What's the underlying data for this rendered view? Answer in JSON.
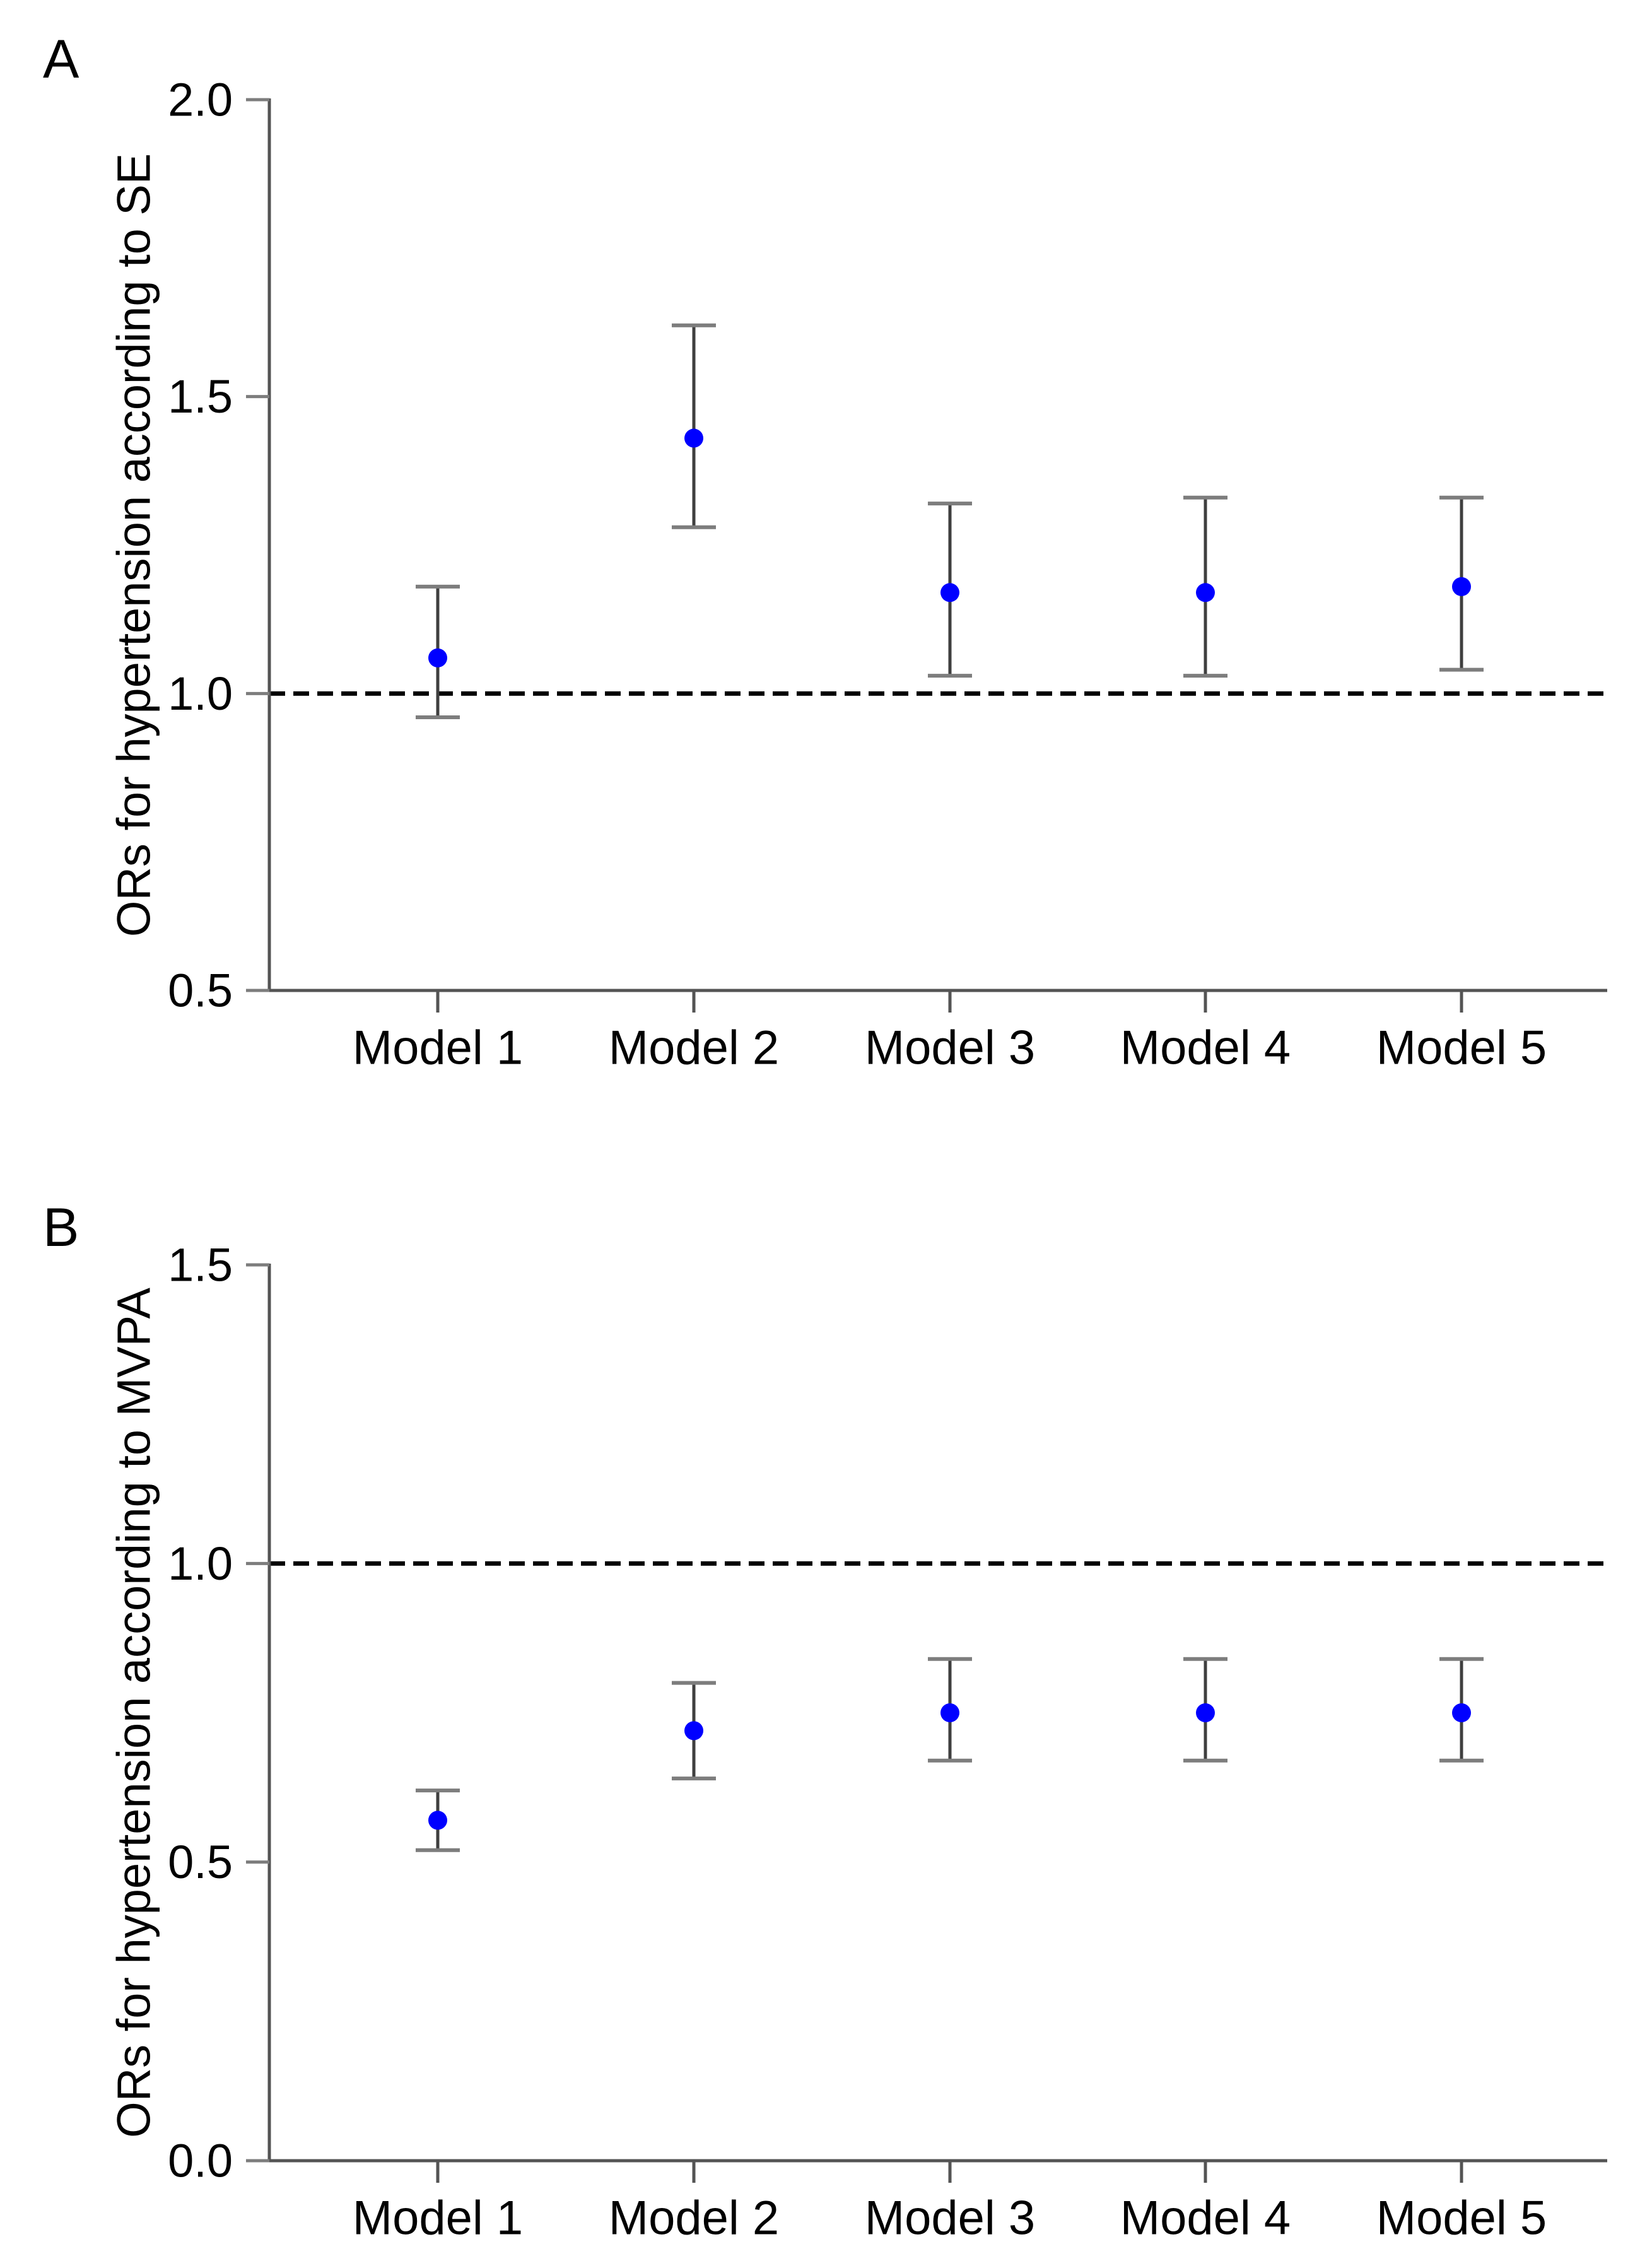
{
  "colors": {
    "point": "#0000ff",
    "error_bar": "#3f3f3f",
    "error_cap": "#7d7d7d",
    "axis": "#545454",
    "tick": "#7d7d7d",
    "reference_line": "#000000",
    "text": "#000000",
    "background": "#ffffff"
  },
  "chart_data": [
    {
      "panel_label": "A",
      "type": "scatter",
      "subtype": "point-with-errorbars",
      "ylabel": "ORs for hypertension according to SE",
      "xlabel": "",
      "categories": [
        "Model 1",
        "Model 2",
        "Model 3",
        "Model 4",
        "Model 5"
      ],
      "values": [
        1.06,
        1.43,
        1.17,
        1.17,
        1.18
      ],
      "ci_low": [
        0.96,
        1.28,
        1.03,
        1.03,
        1.04
      ],
      "ci_high": [
        1.18,
        1.62,
        1.32,
        1.33,
        1.33
      ],
      "ylim": [
        0.5,
        2.0
      ],
      "y_ticks": [
        "2.0",
        "1.5",
        "1.0",
        "0.5"
      ],
      "refline": 1.0,
      "refline_style": "dashed",
      "grid": "off",
      "legend": "none",
      "marker": "filled-circle"
    },
    {
      "panel_label": "B",
      "type": "scatter",
      "subtype": "point-with-errorbars",
      "ylabel": "ORs for hypertension according to MVPA",
      "xlabel": "",
      "categories": [
        "Model 1",
        "Model 2",
        "Model 3",
        "Model 4",
        "Model 5"
      ],
      "values": [
        0.57,
        0.72,
        0.75,
        0.75,
        0.75
      ],
      "ci_low": [
        0.52,
        0.64,
        0.67,
        0.67,
        0.67
      ],
      "ci_high": [
        0.62,
        0.8,
        0.84,
        0.84,
        0.84
      ],
      "ylim": [
        0.0,
        1.5
      ],
      "y_ticks": [
        "1.5",
        "1.0",
        "0.5",
        "0.0"
      ],
      "refline": 1.0,
      "refline_style": "dashed",
      "grid": "off",
      "legend": "none",
      "marker": "filled-circle"
    }
  ]
}
